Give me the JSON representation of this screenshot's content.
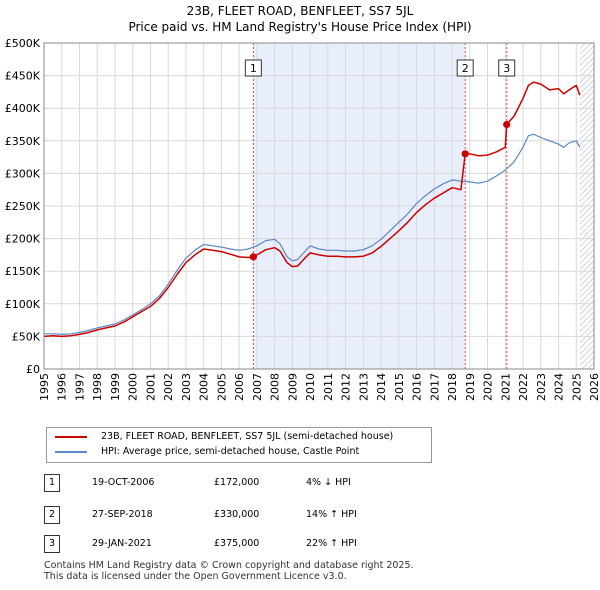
{
  "chart_data": {
    "type": "line",
    "title_line1": "23B, FLEET ROAD, BENFLEET, SS7 5JL",
    "title_line2": "Price paid vs. HM Land Registry's House Price Index (HPI)",
    "xlim": [
      1995,
      2026
    ],
    "ylim": [
      0,
      500000
    ],
    "x_ticks": [
      "1995",
      "1996",
      "1997",
      "1998",
      "1999",
      "2000",
      "2001",
      "2002",
      "2003",
      "2004",
      "2005",
      "2006",
      "2007",
      "2008",
      "2009",
      "2010",
      "2011",
      "2012",
      "2013",
      "2014",
      "2015",
      "2016",
      "2017",
      "2018",
      "2019",
      "2020",
      "2021",
      "2022",
      "2023",
      "2024",
      "2025",
      "2026"
    ],
    "y_ticks": [
      {
        "value": 0,
        "label": "£0"
      },
      {
        "value": 50000,
        "label": "£50K"
      },
      {
        "value": 100000,
        "label": "£100K"
      },
      {
        "value": 150000,
        "label": "£150K"
      },
      {
        "value": 200000,
        "label": "£200K"
      },
      {
        "value": 250000,
        "label": "£250K"
      },
      {
        "value": 300000,
        "label": "£300K"
      },
      {
        "value": 350000,
        "label": "£350K"
      },
      {
        "value": 400000,
        "label": "£400K"
      },
      {
        "value": 450000,
        "label": "£450K"
      },
      {
        "value": 500000,
        "label": "£500K"
      }
    ],
    "series": [
      {
        "name": "23B, FLEET ROAD, BENFLEET, SS7 5JL (semi-detached house)",
        "color": "#cc0000",
        "x": [
          1995,
          1995.5,
          1996,
          1996.5,
          1997,
          1997.5,
          1998,
          1998.5,
          1999,
          1999.5,
          2000,
          2000.5,
          2001,
          2001.5,
          2002,
          2002.5,
          2003,
          2003.5,
          2004,
          2004.5,
          2005,
          2005.5,
          2006,
          2006.5,
          2006.8,
          2007,
          2007.5,
          2008,
          2008.3,
          2008.7,
          2009,
          2009.3,
          2009.7,
          2010,
          2010.5,
          2011,
          2011.5,
          2012,
          2012.5,
          2013,
          2013.5,
          2014,
          2014.5,
          2015,
          2015.5,
          2016,
          2016.5,
          2017,
          2017.5,
          2018,
          2018.5,
          2018.74,
          2019,
          2019.5,
          2020,
          2020.5,
          2021,
          2021.08,
          2021.5,
          2022,
          2022.3,
          2022.6,
          2023,
          2023.5,
          2024,
          2024.3,
          2024.6,
          2025,
          2025.2
        ],
        "y": [
          50000,
          51000,
          50000,
          51000,
          53000,
          56000,
          60000,
          63000,
          66000,
          72000,
          80000,
          88000,
          96000,
          108000,
          125000,
          145000,
          163000,
          175000,
          184000,
          182000,
          180000,
          176000,
          172000,
          171000,
          172000,
          175000,
          183000,
          186000,
          181000,
          163000,
          157000,
          158000,
          170000,
          178000,
          175000,
          173000,
          173000,
          172000,
          172000,
          173000,
          178000,
          188000,
          200000,
          212000,
          225000,
          240000,
          252000,
          262000,
          270000,
          278000,
          275000,
          330000,
          330000,
          327000,
          328000,
          333000,
          340000,
          375000,
          388000,
          415000,
          435000,
          440000,
          437000,
          428000,
          430000,
          422000,
          428000,
          435000,
          420000
        ]
      },
      {
        "name": "HPI: Average price, semi-detached house, Castle Point",
        "color": "#5b87c5",
        "x": [
          1995,
          1995.5,
          1996,
          1996.5,
          1997,
          1997.5,
          1998,
          1998.5,
          1999,
          1999.5,
          2000,
          2000.5,
          2001,
          2001.5,
          2002,
          2002.5,
          2003,
          2003.5,
          2004,
          2004.5,
          2005,
          2005.5,
          2006,
          2006.5,
          2007,
          2007.5,
          2008,
          2008.3,
          2008.7,
          2009,
          2009.3,
          2009.7,
          2010,
          2010.5,
          2011,
          2011.5,
          2012,
          2012.5,
          2013,
          2013.5,
          2014,
          2014.5,
          2015,
          2015.5,
          2016,
          2016.5,
          2017,
          2017.5,
          2018,
          2018.5,
          2019,
          2019.5,
          2020,
          2020.5,
          2021,
          2021.5,
          2022,
          2022.3,
          2022.6,
          2023,
          2023.5,
          2024,
          2024.3,
          2024.6,
          2025,
          2025.2
        ],
        "y": [
          54000,
          54000,
          53000,
          54000,
          56000,
          59000,
          63000,
          66000,
          69000,
          75000,
          83000,
          91000,
          100000,
          112000,
          130000,
          151000,
          170000,
          182000,
          191000,
          189000,
          187000,
          184000,
          182000,
          184000,
          189000,
          197000,
          199000,
          192000,
          172000,
          166000,
          168000,
          180000,
          189000,
          184000,
          182000,
          182000,
          181000,
          181000,
          183000,
          189000,
          199000,
          212000,
          225000,
          238000,
          254000,
          266000,
          276000,
          284000,
          290000,
          288000,
          287000,
          285000,
          288000,
          296000,
          305000,
          318000,
          340000,
          358000,
          360000,
          355000,
          350000,
          345000,
          340000,
          347000,
          350000,
          340000
        ]
      }
    ],
    "sales": [
      {
        "label": "1",
        "x": 2006.8,
        "value": 172000,
        "date": "19-OCT-2006",
        "price": "£172,000",
        "hpi": "4% ↓ HPI"
      },
      {
        "label": "2",
        "x": 2018.74,
        "value": 330000,
        "date": "27-SEP-2018",
        "price": "£330,000",
        "hpi": "14% ↑ HPI"
      },
      {
        "label": "3",
        "x": 2021.08,
        "value": 375000,
        "date": "29-JAN-2021",
        "price": "£375,000",
        "hpi": "22% ↑ HPI"
      }
    ],
    "shaded_range": [
      2006.8,
      2018.74
    ],
    "hatched_from": 2025.2
  },
  "legend": {
    "property_label": "23B, FLEET ROAD, BENFLEET, SS7 5JL (semi-detached house)",
    "hpi_label": "HPI: Average price, semi-detached house, Castle Point"
  },
  "footer": {
    "line1": "Contains HM Land Registry data © Crown copyright and database right 2025.",
    "line2": "This data is licensed under the Open Government Licence v3.0."
  }
}
